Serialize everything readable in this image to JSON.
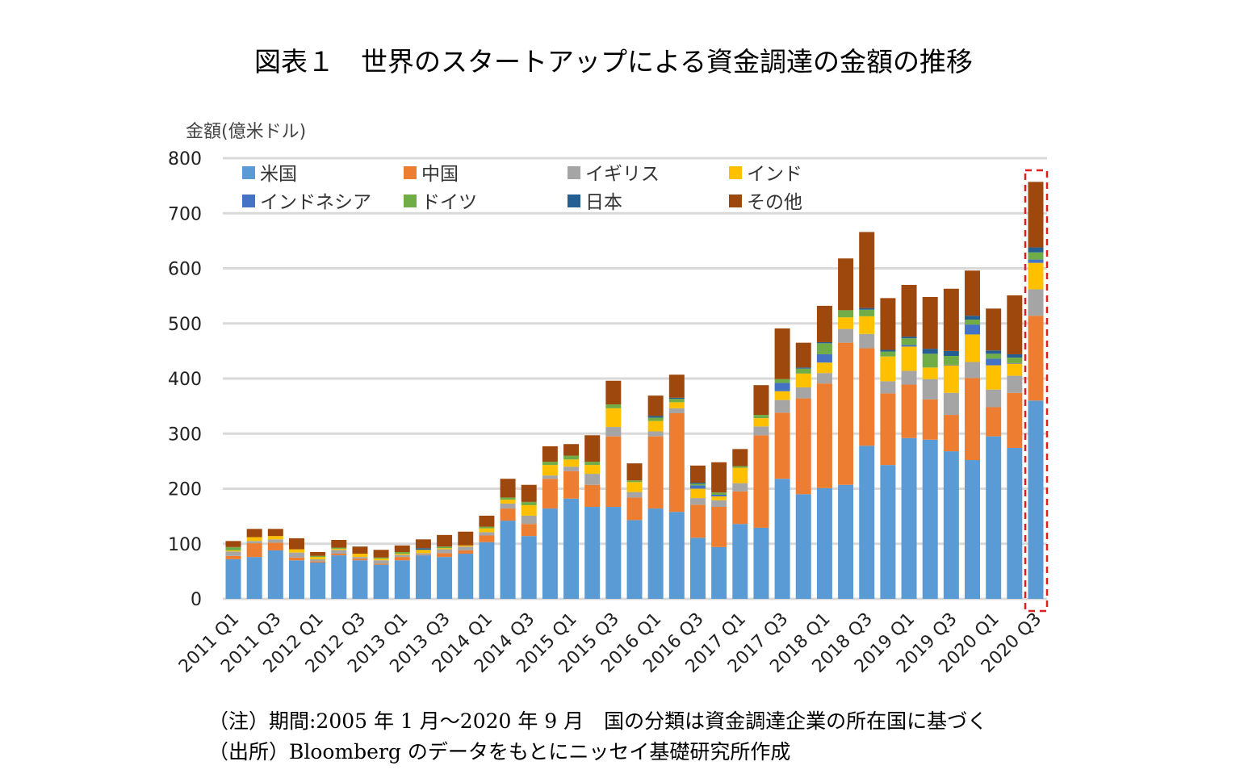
{
  "title": "図表１　世界のスタートアップによる資金調達の金額の推移",
  "notes": [
    "（注）期間:2005 年 1 月～2020 年 9 月　国の分類は資金調達企業の所在国に基づく",
    "（出所）Bloomberg のデータをもとにニッセイ基礎研究所作成"
  ],
  "chart_data": {
    "type": "bar",
    "stacked": true,
    "title": "図表１　世界のスタートアップによる資金調達の金額の推移",
    "ylabel": "金額(億米ドル)",
    "xlabel": "",
    "ylim": [
      0,
      800
    ],
    "yticks": [
      0,
      100,
      200,
      300,
      400,
      500,
      600,
      700,
      800
    ],
    "grid": true,
    "legend_position": "top-left inside",
    "highlight": {
      "category": "2020 Q3",
      "style": "red dashed box"
    },
    "categories": [
      "2011 Q1",
      "2011 Q2",
      "2011 Q3",
      "2011 Q4",
      "2012 Q1",
      "2012 Q2",
      "2012 Q3",
      "2012 Q4",
      "2013 Q1",
      "2013 Q2",
      "2013 Q3",
      "2013 Q4",
      "2014 Q1",
      "2014 Q2",
      "2014 Q3",
      "2014 Q4",
      "2015 Q1",
      "2015 Q2",
      "2015 Q3",
      "2015 Q4",
      "2016 Q1",
      "2016 Q2",
      "2016 Q3",
      "2016 Q4",
      "2017 Q1",
      "2017 Q2",
      "2017 Q3",
      "2017 Q4",
      "2018 Q1",
      "2018 Q2",
      "2018 Q3",
      "2018 Q4",
      "2019 Q1",
      "2019 Q2",
      "2019 Q3",
      "2019 Q4",
      "2020 Q1",
      "2020 Q2",
      "2020 Q3"
    ],
    "xtick_labels": [
      "2011 Q1",
      "2011 Q3",
      "2012 Q1",
      "2012 Q3",
      "2013 Q1",
      "2013 Q3",
      "2014 Q1",
      "2014 Q3",
      "2015 Q1",
      "2015 Q3",
      "2016 Q1",
      "2016 Q3",
      "2017 Q1",
      "2017 Q3",
      "2018 Q1",
      "2018 Q3",
      "2019 Q1",
      "2019 Q3",
      "2020 Q1",
      "2020 Q3"
    ],
    "series": [
      {
        "name": "米国",
        "color": "#5B9BD5",
        "values": [
          72,
          76,
          88,
          70,
          66,
          79,
          70,
          62,
          70,
          79,
          76,
          82,
          103,
          142,
          114,
          164,
          182,
          167,
          167,
          143,
          164,
          158,
          111,
          94,
          136,
          129,
          218,
          190,
          201,
          207,
          278,
          243,
          292,
          289,
          268,
          252,
          295,
          274,
          360
        ]
      },
      {
        "name": "中国",
        "color": "#ED7D31",
        "values": [
          6,
          25,
          14,
          5,
          2,
          3,
          3,
          2,
          6,
          1,
          7,
          6,
          12,
          22,
          22,
          54,
          50,
          40,
          128,
          41,
          131,
          179,
          60,
          73,
          59,
          168,
          120,
          174,
          190,
          258,
          177,
          130,
          97,
          73,
          66,
          149,
          53,
          100,
          154
        ]
      },
      {
        "name": "イギリス",
        "color": "#A5A5A5",
        "values": [
          8,
          4,
          6,
          9,
          4,
          7,
          3,
          6,
          4,
          3,
          7,
          7,
          6,
          9,
          15,
          6,
          8,
          20,
          17,
          10,
          9,
          9,
          12,
          12,
          15,
          16,
          23,
          20,
          19,
          25,
          26,
          22,
          25,
          37,
          40,
          29,
          32,
          31,
          48
        ]
      },
      {
        "name": "インド",
        "color": "#FFC000",
        "values": [
          2,
          7,
          6,
          6,
          4,
          2,
          6,
          3,
          2,
          6,
          2,
          2,
          7,
          7,
          19,
          19,
          13,
          16,
          34,
          18,
          19,
          11,
          17,
          7,
          28,
          15,
          16,
          25,
          19,
          21,
          32,
          45,
          44,
          21,
          50,
          50,
          44,
          22,
          48
        ]
      },
      {
        "name": "インドネシア",
        "color": "#4472C4",
        "values": [
          0,
          0,
          0,
          0,
          0,
          0,
          0,
          0,
          0,
          0,
          0,
          0,
          0,
          0,
          0,
          0,
          0,
          0,
          0,
          0,
          0,
          0,
          6,
          3,
          0,
          0,
          15,
          0,
          15,
          0,
          0,
          0,
          3,
          0,
          1,
          18,
          12,
          1,
          6
        ]
      },
      {
        "name": "ドイツ",
        "color": "#70AD47",
        "values": [
          6,
          0,
          0,
          0,
          2,
          2,
          0,
          2,
          3,
          0,
          3,
          0,
          3,
          4,
          6,
          6,
          7,
          6,
          7,
          3,
          6,
          6,
          3,
          4,
          3,
          6,
          7,
          9,
          20,
          13,
          12,
          9,
          12,
          25,
          16,
          9,
          9,
          10,
          13
        ]
      },
      {
        "name": "日本",
        "color": "#255E91",
        "values": [
          0,
          0,
          0,
          0,
          0,
          0,
          0,
          0,
          0,
          3,
          0,
          0,
          0,
          0,
          0,
          0,
          0,
          0,
          0,
          0,
          3,
          2,
          2,
          0,
          0,
          0,
          0,
          2,
          2,
          0,
          3,
          3,
          3,
          9,
          9,
          7,
          6,
          6,
          9
        ]
      },
      {
        "name": "その他",
        "color": "#9E480E",
        "values": [
          11,
          15,
          13,
          20,
          7,
          14,
          13,
          14,
          12,
          16,
          21,
          25,
          20,
          34,
          31,
          28,
          21,
          48,
          43,
          31,
          37,
          42,
          31,
          55,
          31,
          54,
          92,
          45,
          66,
          94,
          138,
          94,
          94,
          94,
          113,
          82,
          76,
          107,
          119
        ]
      }
    ]
  }
}
